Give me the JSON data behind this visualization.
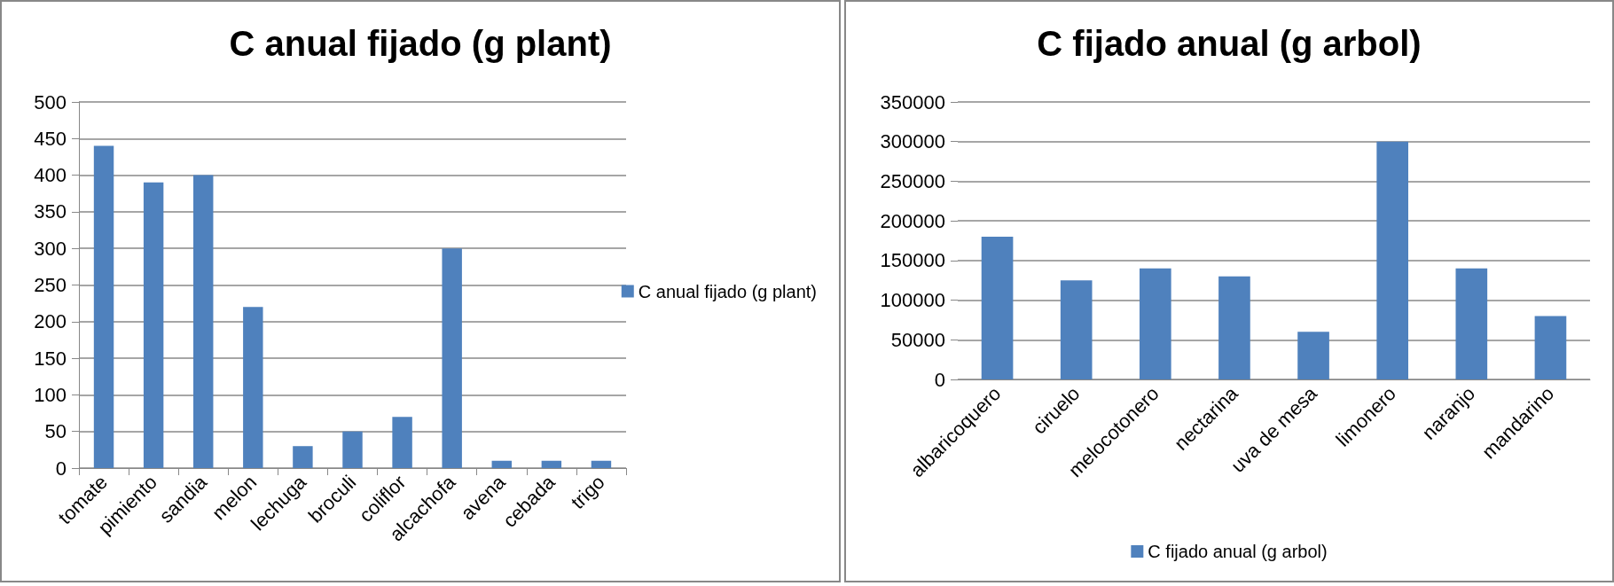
{
  "chart_data": [
    {
      "type": "bar",
      "title": "C anual fijado (g plant)",
      "categories": [
        "tomate",
        "pimiento",
        "sandia",
        "melon",
        "lechuga",
        "broculi",
        "coliflor",
        "alcachofa",
        "avena",
        "cebada",
        "trigo"
      ],
      "series": [
        {
          "name": "C anual fijado (g plant)",
          "color": "#4f81bd",
          "values": [
            440,
            390,
            400,
            220,
            30,
            50,
            70,
            300,
            10,
            10,
            10
          ]
        }
      ],
      "ylim": [
        0,
        500
      ],
      "yticks": [
        0,
        50,
        100,
        150,
        200,
        250,
        300,
        350,
        400,
        450,
        500
      ],
      "grid": "y",
      "legend": "right"
    },
    {
      "type": "bar",
      "title": "C fijado anual (g arbol)",
      "categories": [
        "albaricoquero",
        "ciruelo",
        "melocotonero",
        "nectarina",
        "uva de mesa",
        "limonero",
        "naranjo",
        "mandarino"
      ],
      "series": [
        {
          "name": "C fijado anual (g arbol)",
          "color": "#4f81bd",
          "values": [
            180000,
            125000,
            140000,
            130000,
            60000,
            300000,
            140000,
            80000
          ]
        }
      ],
      "ylim": [
        0,
        350000
      ],
      "yticks": [
        0,
        50000,
        100000,
        150000,
        200000,
        250000,
        300000,
        350000
      ],
      "grid": "y",
      "legend": "bottom"
    }
  ]
}
